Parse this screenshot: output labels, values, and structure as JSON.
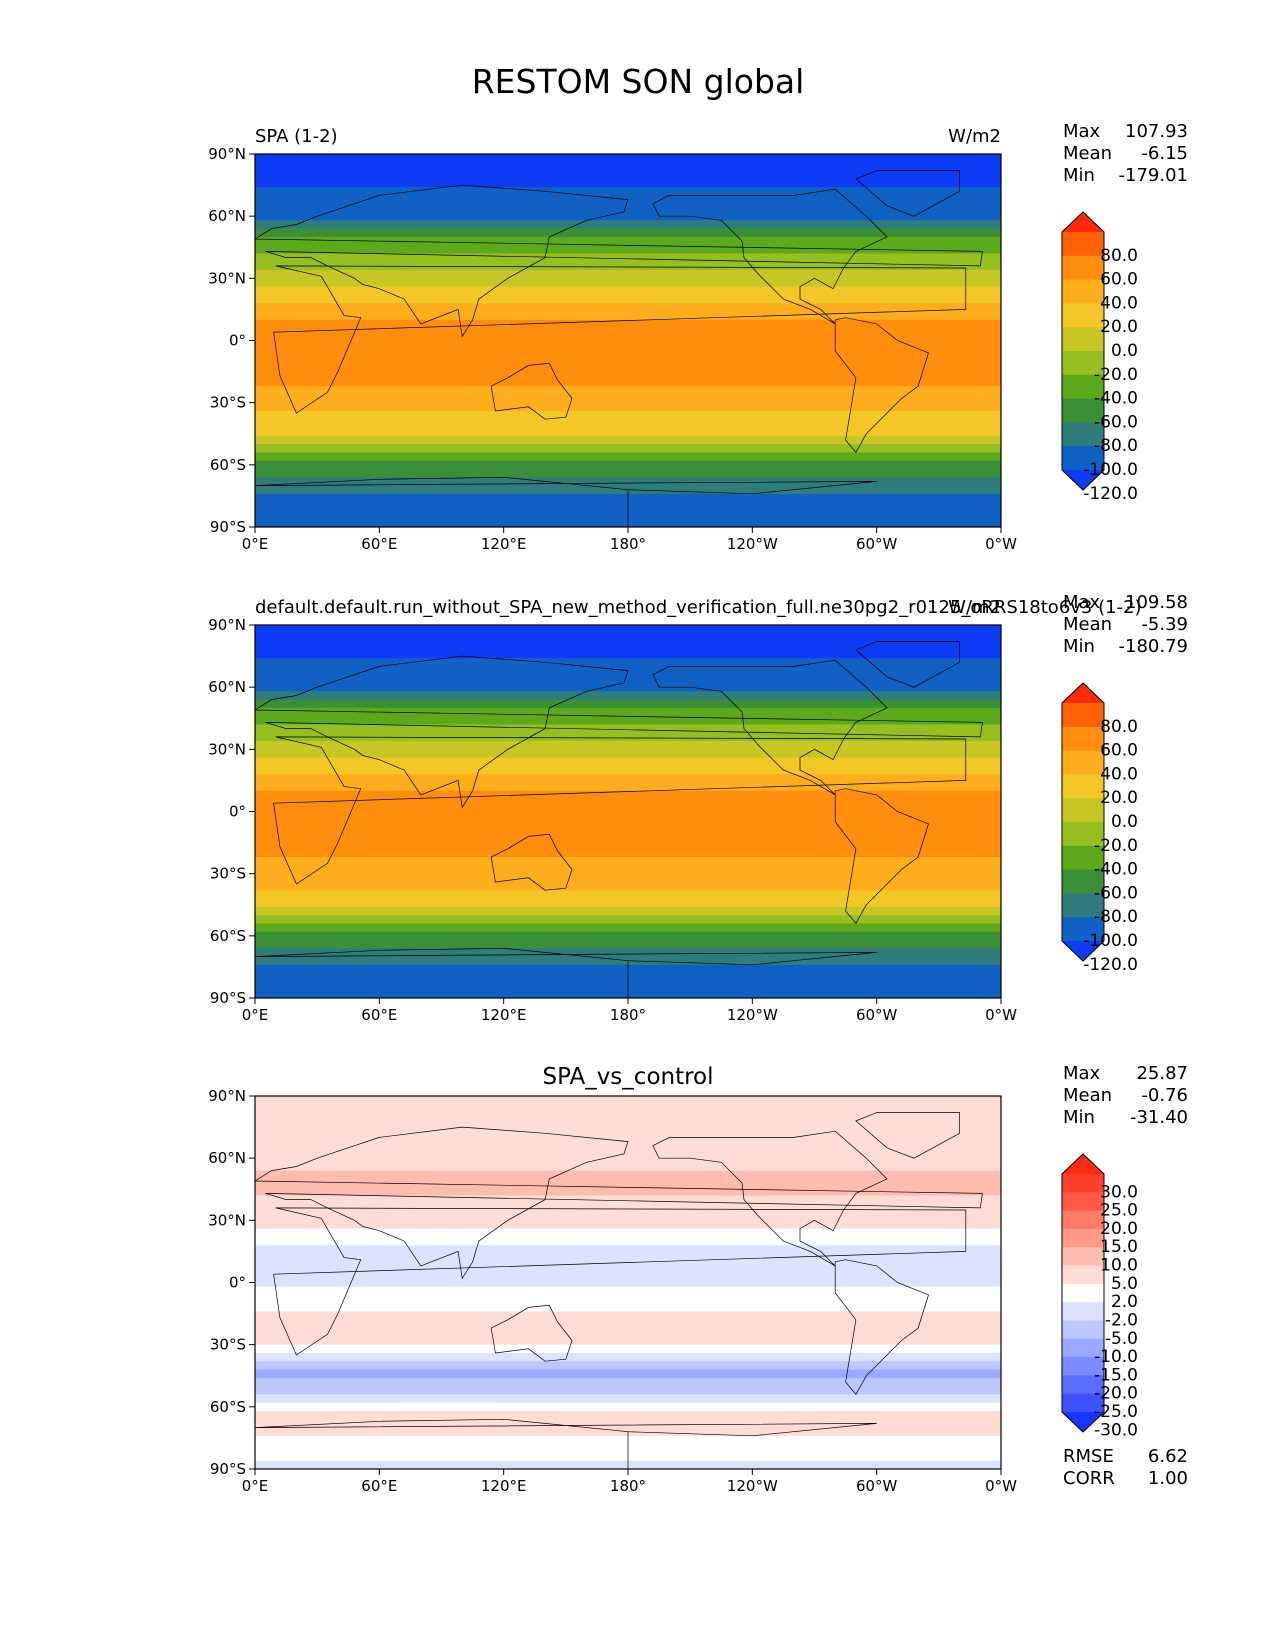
{
  "figure_title": "RESTOM SON global",
  "chart_data": [
    {
      "type": "heatmap",
      "left_title": "SPA (1-2)",
      "center_title": "",
      "right_title": "W/m2",
      "x_ticks": [
        "0°E",
        "60°E",
        "120°E",
        "180°",
        "120°W",
        "60°W",
        "0°W"
      ],
      "y_ticks": [
        "90°N",
        "60°N",
        "30°N",
        "0°",
        "30°S",
        "60°S",
        "90°S"
      ],
      "xlim": [
        0,
        360
      ],
      "ylim": [
        -90,
        90
      ],
      "stats": [
        {
          "label": "Max",
          "value": "107.93"
        },
        {
          "label": "Mean",
          "value": "-6.15"
        },
        {
          "label": "Min",
          "value": "-179.01"
        }
      ],
      "colorbar": {
        "levels": [
          "80.0",
          "60.0",
          "40.0",
          "20.0",
          "0.0",
          "-20.0",
          "-40.0",
          "-60.0",
          "-80.0",
          "-100.0",
          "-120.0"
        ],
        "colors": [
          "#ff2a0a",
          "#ff6206",
          "#ff8e0e",
          "#fdae1c",
          "#f4c728",
          "#c7c625",
          "#97bf22",
          "#5da91c",
          "#3b8f37",
          "#2e7d7c",
          "#1161c4",
          "#0e3cf5"
        ]
      },
      "fields": [
        {
          "lat": 80,
          "value": -130
        },
        {
          "lat": 60,
          "value": -100
        },
        {
          "lat": 45,
          "value": -45
        },
        {
          "lat": 30,
          "value": -15
        },
        {
          "lat": 15,
          "value": 30
        },
        {
          "lat": 0,
          "value": 60
        },
        {
          "lat": -15,
          "value": 50
        },
        {
          "lat": -30,
          "value": 30
        },
        {
          "lat": -45,
          "value": 5
        },
        {
          "lat": -60,
          "value": -60
        },
        {
          "lat": -75,
          "value": -105
        },
        {
          "lat": -88,
          "value": -110
        }
      ],
      "stats_bottom": []
    },
    {
      "type": "heatmap",
      "left_title": "default.default.run_without_SPA_new_method_verification_full.ne30pg2_r0125_oRRS18to6v3 (1-2)",
      "center_title": "",
      "right_title": "W/m2",
      "x_ticks": [
        "0°E",
        "60°E",
        "120°E",
        "180°",
        "120°W",
        "60°W",
        "0°W"
      ],
      "y_ticks": [
        "90°N",
        "60°N",
        "30°N",
        "0°",
        "30°S",
        "60°S",
        "90°S"
      ],
      "xlim": [
        0,
        360
      ],
      "ylim": [
        -90,
        90
      ],
      "stats": [
        {
          "label": "Max",
          "value": "109.58"
        },
        {
          "label": "Mean",
          "value": "-5.39"
        },
        {
          "label": "Min",
          "value": "-180.79"
        }
      ],
      "colorbar": {
        "levels": [
          "80.0",
          "60.0",
          "40.0",
          "20.0",
          "0.0",
          "-20.0",
          "-40.0",
          "-60.0",
          "-80.0",
          "-100.0",
          "-120.0"
        ],
        "colors": [
          "#ff2a0a",
          "#ff6206",
          "#ff8e0e",
          "#fdae1c",
          "#f4c728",
          "#c7c625",
          "#97bf22",
          "#5da91c",
          "#3b8f37",
          "#2e7d7c",
          "#1161c4",
          "#0e3cf5"
        ]
      },
      "fields": [
        {
          "lat": 80,
          "value": -130
        },
        {
          "lat": 60,
          "value": -100
        },
        {
          "lat": 45,
          "value": -45
        },
        {
          "lat": 30,
          "value": -15
        },
        {
          "lat": 15,
          "value": 30
        },
        {
          "lat": 0,
          "value": 60
        },
        {
          "lat": -15,
          "value": 50
        },
        {
          "lat": -30,
          "value": 30
        },
        {
          "lat": -45,
          "value": 10
        },
        {
          "lat": -60,
          "value": -60
        },
        {
          "lat": -75,
          "value": -105
        },
        {
          "lat": -88,
          "value": -110
        }
      ],
      "stats_bottom": []
    },
    {
      "type": "heatmap",
      "left_title": "",
      "center_title": "SPA_vs_control",
      "right_title": "",
      "x_ticks": [
        "0°E",
        "60°E",
        "120°E",
        "180°",
        "120°W",
        "60°W",
        "0°W"
      ],
      "y_ticks": [
        "90°N",
        "60°N",
        "30°N",
        "0°",
        "30°S",
        "60°S",
        "90°S"
      ],
      "xlim": [
        0,
        360
      ],
      "ylim": [
        -90,
        90
      ],
      "stats": [
        {
          "label": "Max",
          "value": "25.87"
        },
        {
          "label": "Mean",
          "value": "-0.76"
        },
        {
          "label": "Min",
          "value": "-31.40"
        }
      ],
      "colorbar": {
        "levels": [
          "30.0",
          "25.0",
          "20.0",
          "15.0",
          "10.0",
          "5.0",
          "2.0",
          "-2.0",
          "-5.0",
          "-10.0",
          "-15.0",
          "-20.0",
          "-25.0",
          "-30.0"
        ],
        "colors": [
          "#ff2a10",
          "#ff3f2c",
          "#ff5a48",
          "#ff7b66",
          "#ff9a88",
          "#ffbcb0",
          "#ffdcd6",
          "#ffffff",
          "#dde3ff",
          "#bcc6ff",
          "#9aa9ff",
          "#7b8cff",
          "#5a6eff",
          "#3f52ff",
          "#1a35ff"
        ]
      },
      "fields": [
        {
          "lat": 80,
          "value": 3
        },
        {
          "lat": 60,
          "value": 4
        },
        {
          "lat": 45,
          "value": 6
        },
        {
          "lat": 30,
          "value": 3
        },
        {
          "lat": 15,
          "value": -4
        },
        {
          "lat": 0,
          "value": -3
        },
        {
          "lat": -15,
          "value": 3
        },
        {
          "lat": -30,
          "value": 4
        },
        {
          "lat": -42,
          "value": -12
        },
        {
          "lat": -55,
          "value": -4
        },
        {
          "lat": -65,
          "value": 5
        },
        {
          "lat": -88,
          "value": -3
        }
      ],
      "stats_bottom": [
        {
          "label": "RMSE",
          "value": "6.62"
        },
        {
          "label": "CORR",
          "value": "1.00"
        }
      ]
    }
  ]
}
